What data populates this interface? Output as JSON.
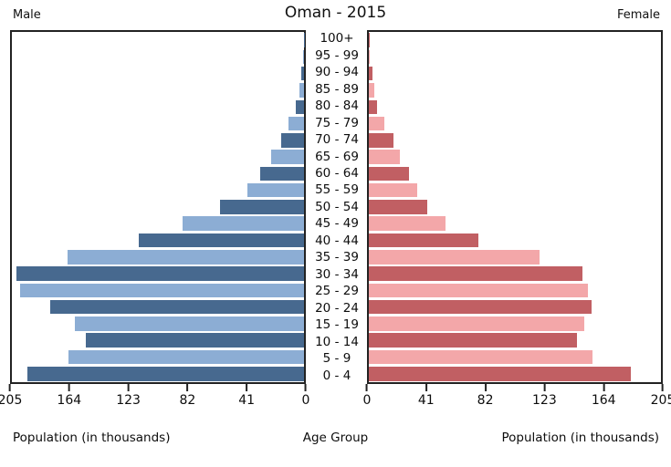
{
  "header": {
    "left_label": "Male",
    "title": "Oman - 2015",
    "right_label": "Female"
  },
  "axis": {
    "x_label_left": "Population (in thousands)",
    "center_label": "Age Group",
    "x_label_right": "Population (in thousands)",
    "left_ticks": [
      "205",
      "164",
      "123",
      "82",
      "41",
      "0"
    ],
    "right_ticks": [
      "0",
      "41",
      "82",
      "123",
      "164",
      "205"
    ]
  },
  "colors": {
    "male_dark": "#47698f",
    "male_light": "#8cadd4",
    "female_dark": "#c15f63",
    "female_light": "#f3a7a9",
    "plot_border": "#222222"
  },
  "chart_data": {
    "type": "bar",
    "subtype": "population-pyramid",
    "title": "Oman - 2015",
    "unit": "thousands of people",
    "xlim": [
      0,
      205
    ],
    "x_ticks": [
      0,
      41,
      82,
      123,
      164,
      205
    ],
    "grid": false,
    "age_groups_top_to_bottom": [
      "100+",
      "95 - 99",
      "90 - 94",
      "85 - 89",
      "80 - 84",
      "75 - 79",
      "70 - 74",
      "65 - 69",
      "60 - 64",
      "55 - 59",
      "50 - 54",
      "45 - 49",
      "40 - 44",
      "35 - 39",
      "30 - 34",
      "25 - 29",
      "20 - 24",
      "15 - 19",
      "10 - 14",
      "5 - 9",
      "0 - 4"
    ],
    "series": [
      {
        "name": "Male",
        "side": "left",
        "values": [
          0.3,
          0.6,
          2,
          3,
          6,
          11,
          16,
          23,
          31,
          40,
          59,
          85,
          116,
          166,
          202,
          199,
          178,
          161,
          153,
          165,
          194
        ]
      },
      {
        "name": "Female",
        "side": "right",
        "values": [
          0.3,
          0.6,
          2.5,
          4,
          6,
          11,
          17,
          22,
          28,
          34,
          41,
          54,
          77,
          120,
          150,
          154,
          156,
          151,
          146,
          157,
          184
        ]
      }
    ]
  }
}
